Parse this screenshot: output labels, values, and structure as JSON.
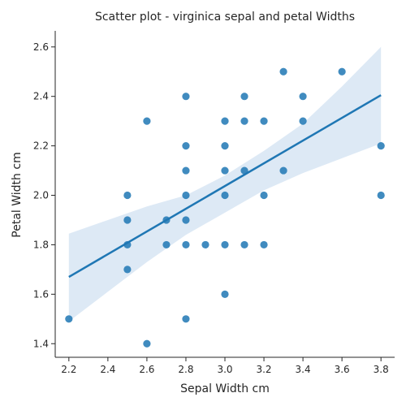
{
  "chart_data": {
    "type": "scatter",
    "title": "Scatter plot - virginica sepal and petal Widths",
    "xlabel": "Sepal Width cm",
    "ylabel": "Petal Width cm",
    "xlim": [
      2.13,
      3.87
    ],
    "ylim": [
      1.345,
      2.665
    ],
    "xticks": [
      "2.2",
      "2.4",
      "2.6",
      "2.8",
      "3.0",
      "3.2",
      "3.4",
      "3.6",
      "3.8"
    ],
    "yticks": [
      "1.4",
      "1.6",
      "1.8",
      "2.0",
      "2.2",
      "2.4",
      "2.6"
    ],
    "grid": false,
    "colors": {
      "points": "#1f77b4",
      "line": "#1f77b4",
      "band": "#c6dbef"
    },
    "points": [
      {
        "x": 2.2,
        "y": 1.5
      },
      {
        "x": 2.5,
        "y": 1.7
      },
      {
        "x": 2.5,
        "y": 1.8
      },
      {
        "x": 2.5,
        "y": 1.9
      },
      {
        "x": 2.5,
        "y": 2.0
      },
      {
        "x": 2.6,
        "y": 1.4
      },
      {
        "x": 2.6,
        "y": 2.3
      },
      {
        "x": 2.7,
        "y": 1.8
      },
      {
        "x": 2.7,
        "y": 1.9
      },
      {
        "x": 2.8,
        "y": 1.5
      },
      {
        "x": 2.8,
        "y": 1.8
      },
      {
        "x": 2.8,
        "y": 1.9
      },
      {
        "x": 2.8,
        "y": 2.0
      },
      {
        "x": 2.8,
        "y": 2.1
      },
      {
        "x": 2.8,
        "y": 2.2
      },
      {
        "x": 2.8,
        "y": 2.4
      },
      {
        "x": 2.9,
        "y": 1.8
      },
      {
        "x": 3.0,
        "y": 1.6
      },
      {
        "x": 3.0,
        "y": 1.8
      },
      {
        "x": 3.0,
        "y": 2.0
      },
      {
        "x": 3.0,
        "y": 2.1
      },
      {
        "x": 3.0,
        "y": 2.2
      },
      {
        "x": 3.0,
        "y": 2.3
      },
      {
        "x": 3.1,
        "y": 1.8
      },
      {
        "x": 3.1,
        "y": 2.1
      },
      {
        "x": 3.1,
        "y": 2.3
      },
      {
        "x": 3.1,
        "y": 2.4
      },
      {
        "x": 3.2,
        "y": 1.8
      },
      {
        "x": 3.2,
        "y": 2.0
      },
      {
        "x": 3.2,
        "y": 2.3
      },
      {
        "x": 3.3,
        "y": 2.1
      },
      {
        "x": 3.3,
        "y": 2.5
      },
      {
        "x": 3.4,
        "y": 2.3
      },
      {
        "x": 3.4,
        "y": 2.4
      },
      {
        "x": 3.6,
        "y": 2.5
      },
      {
        "x": 3.8,
        "y": 2.0
      },
      {
        "x": 3.8,
        "y": 2.2
      }
    ],
    "regression_line": {
      "x": [
        2.2,
        3.8
      ],
      "y": [
        1.67,
        2.405
      ]
    },
    "confidence_band": {
      "x": [
        2.2,
        2.4,
        2.6,
        2.8,
        3.0,
        3.2,
        3.4,
        3.6,
        3.8
      ],
      "lower": [
        1.49,
        1.61,
        1.73,
        1.84,
        1.93,
        2.02,
        2.09,
        2.15,
        2.21
      ],
      "upper": [
        1.845,
        1.9,
        1.955,
        2.0,
        2.08,
        2.18,
        2.29,
        2.44,
        2.6
      ]
    }
  }
}
